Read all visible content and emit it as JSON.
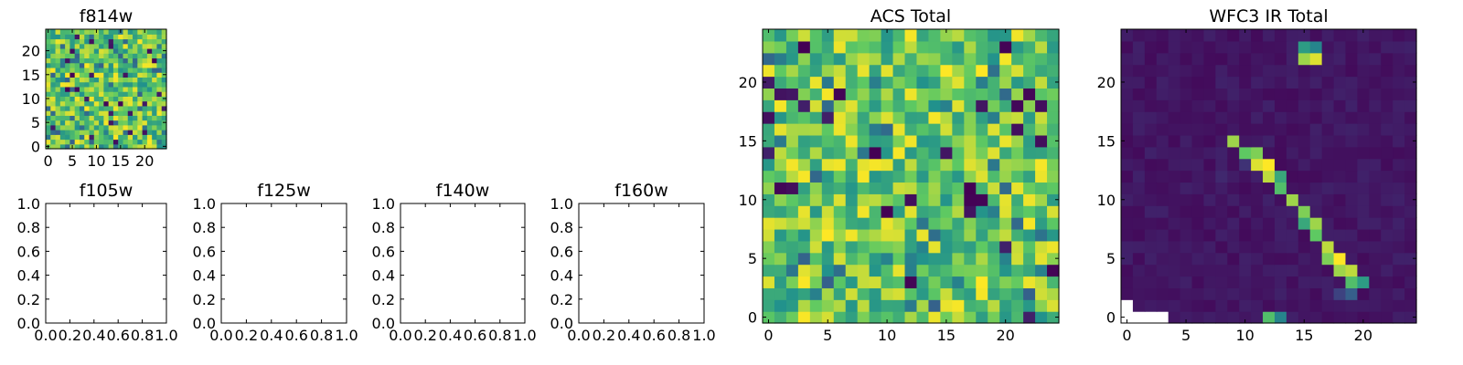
{
  "chart_data": [
    {
      "id": "f814w",
      "type": "heatmap",
      "title": "f814w",
      "source": "acs",
      "xlim": [
        -0.5,
        24.5
      ],
      "ylim": [
        -0.5,
        24.5
      ],
      "xticks": [
        0,
        5,
        10,
        15,
        20
      ],
      "yticks": [
        0,
        5,
        10,
        15,
        20
      ],
      "xtick_labels": [
        "0",
        "5",
        "10",
        "15",
        "20"
      ],
      "ytick_labels": [
        "0",
        "5",
        "10",
        "15",
        "20"
      ]
    },
    {
      "id": "f105w",
      "type": "empty",
      "title": "f105w",
      "xlim": [
        0,
        1
      ],
      "ylim": [
        0,
        1
      ],
      "xticks": [
        0,
        0.2,
        0.4,
        0.6,
        0.8,
        1.0
      ],
      "yticks": [
        0,
        0.2,
        0.4,
        0.6,
        0.8,
        1.0
      ],
      "xtick_labels": [
        "0.0",
        "0.2",
        "0.4",
        "0.6",
        "0.8",
        "1.0"
      ],
      "ytick_labels": [
        "0.0",
        "0.2",
        "0.4",
        "0.6",
        "0.8",
        "1.0"
      ]
    },
    {
      "id": "f125w",
      "type": "empty",
      "title": "f125w",
      "xlim": [
        0,
        1
      ],
      "ylim": [
        0,
        1
      ],
      "xticks": [
        0,
        0.2,
        0.4,
        0.6,
        0.8,
        1.0
      ],
      "yticks": [
        0,
        0.2,
        0.4,
        0.6,
        0.8,
        1.0
      ],
      "xtick_labels": [
        "0.0",
        "0.2",
        "0.4",
        "0.6",
        "0.8",
        "1.0"
      ],
      "ytick_labels": [
        "0.0",
        "0.2",
        "0.4",
        "0.6",
        "0.8",
        "1.0"
      ]
    },
    {
      "id": "f140w",
      "type": "empty",
      "title": "f140w",
      "xlim": [
        0,
        1
      ],
      "ylim": [
        0,
        1
      ],
      "xticks": [
        0,
        0.2,
        0.4,
        0.6,
        0.8,
        1.0
      ],
      "yticks": [
        0,
        0.2,
        0.4,
        0.6,
        0.8,
        1.0
      ],
      "xtick_labels": [
        "0.0",
        "0.2",
        "0.4",
        "0.6",
        "0.8",
        "1.0"
      ],
      "ytick_labels": [
        "0.0",
        "0.2",
        "0.4",
        "0.6",
        "0.8",
        "1.0"
      ]
    },
    {
      "id": "f160w",
      "type": "empty",
      "title": "f160w",
      "xlim": [
        0,
        1
      ],
      "ylim": [
        0,
        1
      ],
      "xticks": [
        0,
        0.2,
        0.4,
        0.6,
        0.8,
        1.0
      ],
      "yticks": [
        0,
        0.2,
        0.4,
        0.6,
        0.8,
        1.0
      ],
      "xtick_labels": [
        "0.0",
        "0.2",
        "0.4",
        "0.6",
        "0.8",
        "1.0"
      ],
      "ytick_labels": [
        "0.0",
        "0.2",
        "0.4",
        "0.6",
        "0.8",
        "1.0"
      ]
    },
    {
      "id": "acs-total",
      "type": "heatmap",
      "title": "ACS Total",
      "source": "acs",
      "xlim": [
        -0.5,
        24.5
      ],
      "ylim": [
        -0.5,
        24.5
      ],
      "xticks": [
        0,
        5,
        10,
        15,
        20
      ],
      "yticks": [
        0,
        5,
        10,
        15,
        20
      ],
      "xtick_labels": [
        "0",
        "5",
        "10",
        "15",
        "20"
      ],
      "ytick_labels": [
        "0",
        "5",
        "10",
        "15",
        "20"
      ]
    },
    {
      "id": "wfc3-ir-total",
      "type": "heatmap",
      "title": "WFC3 IR Total",
      "source": "ir",
      "xlim": [
        -0.5,
        24.5
      ],
      "ylim": [
        -0.5,
        24.5
      ],
      "xticks": [
        0,
        5,
        10,
        15,
        20
      ],
      "yticks": [
        0,
        5,
        10,
        15,
        20
      ],
      "xtick_labels": [
        "0",
        "5",
        "10",
        "15",
        "20"
      ],
      "ytick_labels": [
        "0",
        "5",
        "10",
        "15",
        "20"
      ]
    }
  ],
  "heatmap": {
    "grid_size": 25,
    "colormap": [
      "#440154",
      "#3b528b",
      "#21918c",
      "#5ec962",
      "#fde725"
    ],
    "acs_description": "uniform noise, normalized values mostly 0.5-1.0 with rare low outliers",
    "ir_background": 0.03,
    "ir_streak": [
      {
        "x": 9,
        "y": 15,
        "v": 0.85
      },
      {
        "x": 10,
        "y": 14,
        "v": 0.75
      },
      {
        "x": 11,
        "y": 14,
        "v": 0.8
      },
      {
        "x": 11,
        "y": 13,
        "v": 0.95
      },
      {
        "x": 12,
        "y": 13,
        "v": 1.0
      },
      {
        "x": 12,
        "y": 12,
        "v": 0.9
      },
      {
        "x": 13,
        "y": 12,
        "v": 0.6
      },
      {
        "x": 13,
        "y": 11,
        "v": 0.7
      },
      {
        "x": 14,
        "y": 10,
        "v": 0.85
      },
      {
        "x": 15,
        "y": 9,
        "v": 0.8
      },
      {
        "x": 15,
        "y": 8,
        "v": 0.6
      },
      {
        "x": 16,
        "y": 8,
        "v": 0.85
      },
      {
        "x": 16,
        "y": 7,
        "v": 0.75
      },
      {
        "x": 17,
        "y": 6,
        "v": 0.9
      },
      {
        "x": 17,
        "y": 5,
        "v": 0.8
      },
      {
        "x": 18,
        "y": 5,
        "v": 1.0
      },
      {
        "x": 18,
        "y": 4,
        "v": 0.85
      },
      {
        "x": 19,
        "y": 4,
        "v": 0.9
      },
      {
        "x": 19,
        "y": 3,
        "v": 0.7
      },
      {
        "x": 20,
        "y": 3,
        "v": 0.55
      },
      {
        "x": 19,
        "y": 2,
        "v": 0.3
      },
      {
        "x": 18,
        "y": 2,
        "v": 0.2
      },
      {
        "x": 15,
        "y": 23,
        "v": 0.55
      },
      {
        "x": 16,
        "y": 23,
        "v": 0.45
      },
      {
        "x": 15,
        "y": 22,
        "v": 0.85
      },
      {
        "x": 16,
        "y": 22,
        "v": 0.95
      },
      {
        "x": 12,
        "y": 0,
        "v": 0.7
      },
      {
        "x": 13,
        "y": 0,
        "v": 0.45
      },
      {
        "x": 10,
        "y": 13,
        "v": 0.15
      },
      {
        "x": 8,
        "y": 12,
        "v": 0.12
      }
    ],
    "ir_missing": [
      {
        "x": 0,
        "y": 0
      },
      {
        "x": 1,
        "y": 0
      },
      {
        "x": 2,
        "y": 0
      },
      {
        "x": 3,
        "y": 0
      },
      {
        "x": 0,
        "y": 1
      }
    ]
  }
}
